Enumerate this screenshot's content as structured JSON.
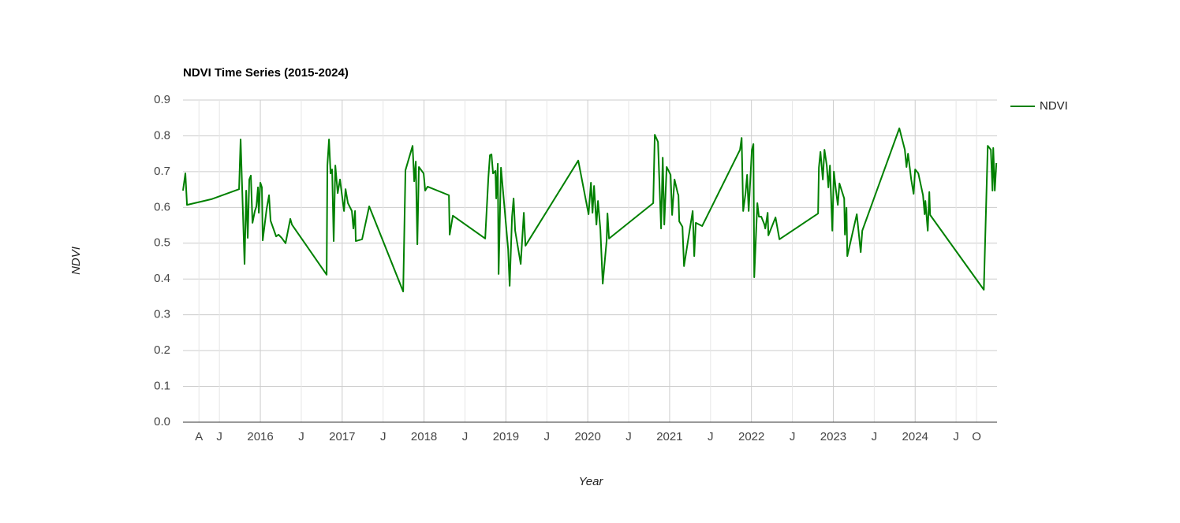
{
  "chart_data": {
    "type": "line",
    "title": "NDVI Time Series (2015-2024)",
    "x_label": "Year",
    "y_label": "NDVI",
    "x": [
      2015.055,
      2015.084,
      2015.104,
      2015.402,
      2015.74,
      2015.759,
      2015.807,
      2015.827,
      2015.846,
      2015.865,
      2015.884,
      2015.904,
      2015.933,
      2015.952,
      2015.971,
      2015.981,
      2016.0,
      2016.019,
      2016.029,
      2016.077,
      2016.106,
      2016.125,
      2016.193,
      2016.222,
      2016.26,
      2016.308,
      2016.366,
      2016.386,
      2016.81,
      2016.819,
      2016.839,
      2016.858,
      2016.877,
      2016.896,
      2016.916,
      2016.945,
      2016.973,
      2017.022,
      2017.041,
      2017.07,
      2017.118,
      2017.137,
      2017.157,
      2017.166,
      2017.243,
      2017.33,
      2017.745,
      2017.773,
      2017.86,
      2017.88,
      2017.899,
      2017.918,
      2017.937,
      2017.995,
      2018.014,
      2018.043,
      2018.304,
      2018.313,
      2018.352,
      2018.747,
      2018.786,
      2018.805,
      2018.824,
      2018.843,
      2018.872,
      2018.882,
      2018.901,
      2018.911,
      2018.94,
      2019.027,
      2019.046,
      2019.075,
      2019.094,
      2019.113,
      2019.181,
      2019.219,
      2019.239,
      2019.884,
      2020.01,
      2020.039,
      2020.058,
      2020.077,
      2020.106,
      2020.125,
      2020.154,
      2020.183,
      2020.231,
      2020.241,
      2020.26,
      2020.8,
      2020.819,
      2020.858,
      2020.896,
      2020.916,
      2020.935,
      2020.964,
      2021.012,
      2021.031,
      2021.06,
      2021.099,
      2021.108,
      2021.118,
      2021.157,
      2021.176,
      2021.282,
      2021.301,
      2021.32,
      2021.398,
      2021.86,
      2021.88,
      2021.899,
      2021.928,
      2021.947,
      2021.966,
      2022.005,
      2022.024,
      2022.034,
      2022.072,
      2022.091,
      2022.12,
      2022.159,
      2022.169,
      2022.198,
      2022.207,
      2022.294,
      2022.342,
      2022.814,
      2022.824,
      2022.843,
      2022.872,
      2022.892,
      2022.92,
      2022.94,
      2022.959,
      2022.988,
      2023.007,
      2023.027,
      2023.055,
      2023.075,
      2023.133,
      2023.142,
      2023.161,
      2023.171,
      2023.287,
      2023.335,
      2023.354,
      2023.807,
      2023.874,
      2023.894,
      2023.913,
      2023.952,
      2023.981,
      2024.0,
      2024.039,
      2024.096,
      2024.116,
      2024.125,
      2024.154,
      2024.173,
      2024.183,
      2024.839,
      2024.887,
      2024.925,
      2024.945,
      2024.954,
      2024.973,
      2024.992
    ],
    "series": [
      {
        "name": "NDVI",
        "color": "#008000",
        "values": [
          0.647,
          0.695,
          0.607,
          0.623,
          0.651,
          0.79,
          0.442,
          0.647,
          0.515,
          0.678,
          0.689,
          0.557,
          0.59,
          0.603,
          0.656,
          0.585,
          0.669,
          0.656,
          0.508,
          0.596,
          0.634,
          0.563,
          0.519,
          0.524,
          0.515,
          0.5,
          0.568,
          0.552,
          0.412,
          0.717,
          0.79,
          0.695,
          0.706,
          0.506,
          0.717,
          0.64,
          0.678,
          0.59,
          0.651,
          0.612,
          0.59,
          0.541,
          0.59,
          0.506,
          0.511,
          0.603,
          0.365,
          0.704,
          0.772,
          0.673,
          0.728,
          0.497,
          0.713,
          0.695,
          0.647,
          0.658,
          0.634,
          0.524,
          0.577,
          0.513,
          0.684,
          0.746,
          0.748,
          0.695,
          0.702,
          0.625,
          0.722,
          0.414,
          0.711,
          0.484,
          0.381,
          0.574,
          0.625,
          0.535,
          0.442,
          0.585,
          0.493,
          0.731,
          0.581,
          0.669,
          0.585,
          0.66,
          0.552,
          0.618,
          0.539,
          0.387,
          0.508,
          0.583,
          0.513,
          0.612,
          0.803,
          0.783,
          0.541,
          0.739,
          0.552,
          0.713,
          0.691,
          0.579,
          0.678,
          0.64,
          0.634,
          0.561,
          0.546,
          0.436,
          0.59,
          0.464,
          0.557,
          0.548,
          0.761,
          0.794,
          0.59,
          0.64,
          0.691,
          0.59,
          0.761,
          0.777,
          0.405,
          0.612,
          0.574,
          0.574,
          0.552,
          0.541,
          0.585,
          0.522,
          0.572,
          0.511,
          0.583,
          0.711,
          0.755,
          0.678,
          0.761,
          0.717,
          0.656,
          0.717,
          0.535,
          0.7,
          0.658,
          0.607,
          0.667,
          0.625,
          0.524,
          0.599,
          0.464,
          0.581,
          0.475,
          0.535,
          0.821,
          0.761,
          0.713,
          0.75,
          0.678,
          0.638,
          0.706,
          0.695,
          0.634,
          0.581,
          0.618,
          0.535,
          0.643,
          0.579,
          0.37,
          0.772,
          0.761,
          0.647,
          0.766,
          0.647,
          0.724
        ]
      }
    ],
    "xlim": [
      2015.055,
      2025.0
    ],
    "xticks": [
      {
        "value": 2015.25,
        "label": "A"
      },
      {
        "value": 2015.5,
        "label": "J"
      },
      2016,
      {
        "value": 2016.5,
        "label": "J"
      },
      2017,
      {
        "value": 2017.5,
        "label": "J"
      },
      2018,
      {
        "value": 2018.5,
        "label": "J"
      },
      2019,
      {
        "value": 2019.5,
        "label": "J"
      },
      2020,
      {
        "value": 2020.5,
        "label": "J"
      },
      2021,
      {
        "value": 2021.5,
        "label": "J"
      },
      2022,
      {
        "value": 2022.5,
        "label": "J"
      },
      2023,
      {
        "value": 2023.5,
        "label": "J"
      },
      2024,
      {
        "value": 2024.5,
        "label": "J"
      },
      {
        "value": 2024.75,
        "label": "O"
      }
    ],
    "ylim": [
      0,
      0.9
    ],
    "yticks": [
      {
        "value": 0,
        "label": "0.0"
      },
      0.1,
      0.2,
      0.3,
      0.4,
      0.5,
      0.6,
      0.7,
      0.8,
      0.9
    ],
    "grid": true,
    "legend": "right"
  }
}
